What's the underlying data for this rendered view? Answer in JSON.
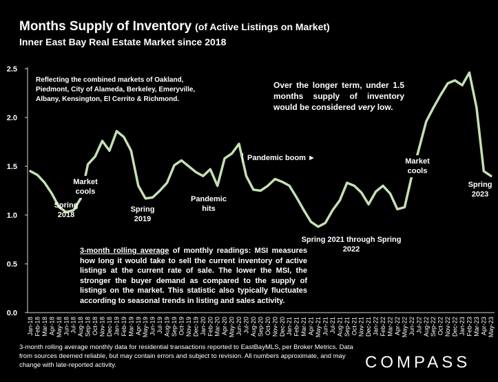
{
  "chart_data": {
    "type": "line",
    "title": "Months Supply of Inventory",
    "title_note": "(of Active Listings on Market)",
    "subtitle": "Inner East Bay Real Estate Market since 2018",
    "categories": [
      "Jan-18",
      "Feb-18",
      "Mar-18",
      "Apr-18",
      "May-18",
      "Jun-18",
      "Jul-18",
      "Aug-18",
      "Sep-18",
      "Oct-18",
      "Nov-18",
      "Dec-18",
      "Jan-19",
      "Feb-19",
      "Mar-19",
      "Apr-19",
      "May-19",
      "Jun-19",
      "Jul-19",
      "Aug-19",
      "Sep-19",
      "Oct-19",
      "Nov-19",
      "Dec-19",
      "Jan-20",
      "Feb-20",
      "Mar-20",
      "Apr-20",
      "May-20",
      "Jun-20",
      "Jul-20",
      "Aug-20",
      "Sep-20",
      "Oct-20",
      "Nov-20",
      "Dec-20",
      "Jan-21",
      "Feb-21",
      "Mar-21",
      "Apr-21",
      "May-21",
      "Jun-21",
      "Jul-21",
      "Aug-21",
      "Sep-21",
      "Oct-21",
      "Nov-21",
      "Dec-21",
      "Jan-22",
      "Feb-22",
      "Mar-22",
      "Apr-22",
      "May-22",
      "Jun-22",
      "Jul-22",
      "Aug-22",
      "Sep-22",
      "Oct-22",
      "Nov-22",
      "Dec-22",
      "Jan-23",
      "Feb-23",
      "Mar-23",
      "Apr-23",
      "May-23"
    ],
    "values": [
      1.45,
      1.41,
      1.33,
      1.22,
      1.08,
      1.03,
      1.05,
      1.17,
      1.52,
      1.6,
      1.76,
      1.66,
      1.86,
      1.8,
      1.66,
      1.3,
      1.17,
      1.18,
      1.25,
      1.33,
      1.51,
      1.56,
      1.5,
      1.44,
      1.4,
      1.47,
      1.3,
      1.58,
      1.63,
      1.73,
      1.4,
      1.26,
      1.25,
      1.3,
      1.37,
      1.34,
      1.3,
      1.18,
      1.05,
      0.93,
      0.88,
      0.92,
      1.05,
      1.15,
      1.33,
      1.3,
      1.23,
      1.11,
      1.24,
      1.3,
      1.22,
      1.06,
      1.08,
      1.4,
      1.68,
      1.96,
      2.1,
      2.23,
      2.35,
      2.38,
      2.33,
      2.46,
      2.1,
      1.45,
      1.4
    ],
    "color": "#c5e0b4",
    "ylim": [
      0,
      2.5
    ],
    "yticks": [
      {
        "value": 0,
        "label": "0.0"
      },
      0.5,
      {
        "value": 1,
        "label": "1.0"
      },
      1.5,
      {
        "value": 2,
        "label": "2.0"
      },
      2.5
    ],
    "annotations": [
      "Spring 2018",
      "Market cools",
      "Spring 2019",
      "Pandemic hits",
      "Pandemic boom ►",
      "Spring 2021 through Spring 2022",
      "Market cools",
      "Spring 2023"
    ],
    "markets_note": "Reflecting the combined markets of Oakland, Piedmont, City of Alameda, Berkeley, Emeryville, Albany, Kensington, El Cerrito & Richmond.",
    "long_term_note": [
      "Over the longer term, under 1.5 months supply of inventory would be considered ",
      "very",
      " low."
    ],
    "method_note": [
      "3-month rolling average",
      " of monthly readings: MSI measures how long it would take to sell the current inventory of active listings at the current rate of sale. The lower the MSI, the stronger the buyer demand as compared to the supply of listings on the market. This statistic also typically fluctuates according to seasonal trends in listing and sales activity."
    ],
    "footer": "3-month rolling average monthly data for residential transactions reported to EastBayMLS, per Broker Metrics. Data from sources deemed reliable, but may contain errors and subject to revision. All numbers approximate, and may change with late-reported activity.",
    "logo": "COMPASS"
  }
}
